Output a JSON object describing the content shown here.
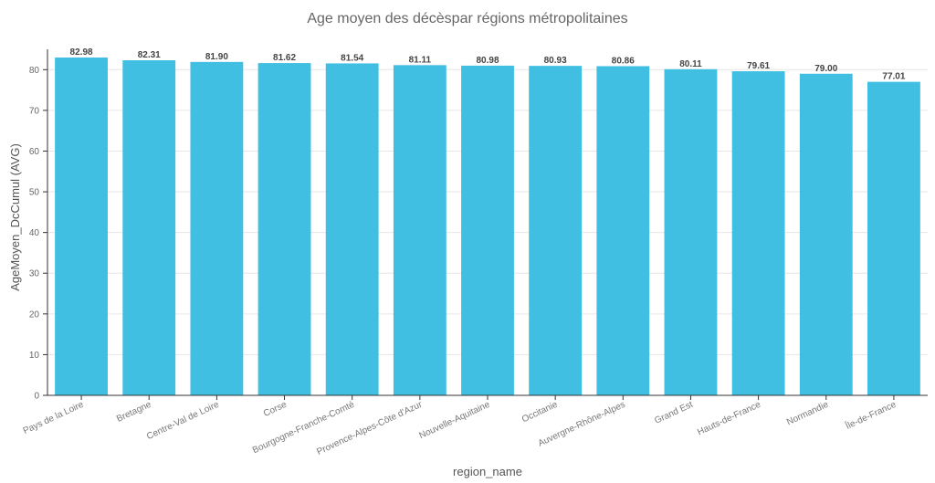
{
  "chart_data": {
    "type": "bar",
    "title": "Age moyen des décèspar régions métropolitaines",
    "xlabel": "region_name",
    "ylabel": "AgeMoyen_DcCumul (AVG)",
    "categories": [
      "Pays de la Loire",
      "Bretagne",
      "Centre-Val de Loire",
      "Corse",
      "Bourgogne-Franche-Comté",
      "Provence-Alpes-Côte d'Azur",
      "Nouvelle-Aquitaine",
      "Occitanie",
      "Auvergne-Rhône-Alpes",
      "Grand Est",
      "Hauts-de-France",
      "Normandie",
      "Île-de-France"
    ],
    "values": [
      82.98,
      82.31,
      81.9,
      81.62,
      81.54,
      81.11,
      80.98,
      80.93,
      80.86,
      80.11,
      79.61,
      79.0,
      77.01
    ],
    "value_labels": [
      "82.98",
      "82.31",
      "81.90",
      "81.62",
      "81.54",
      "81.11",
      "80.98",
      "80.93",
      "80.86",
      "80.11",
      "79.61",
      "79.00",
      "77.01"
    ],
    "ylim": [
      0,
      85
    ],
    "yticks": [
      0,
      10,
      20,
      30,
      40,
      50,
      60,
      70,
      80
    ],
    "grid": true,
    "legend": "none",
    "bar_color": "#41bfe3"
  }
}
